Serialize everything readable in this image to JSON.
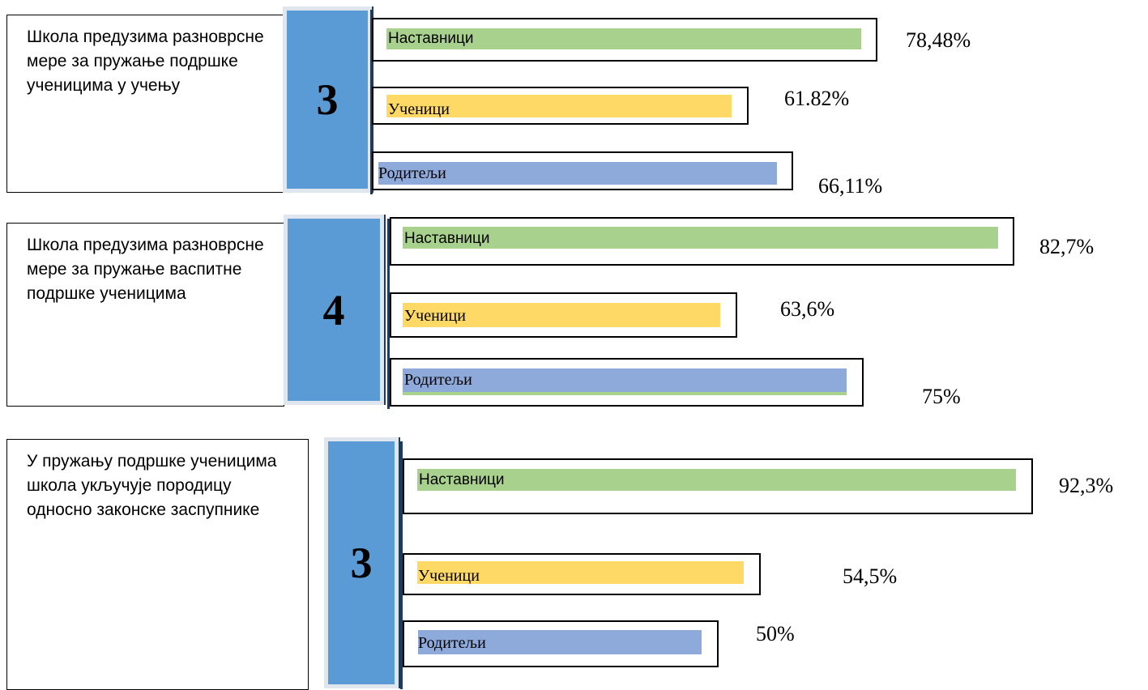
{
  "colors": {
    "nastavnici": "#a9d18e",
    "ucenici": "#ffd966",
    "roditelji": "#8eaadb",
    "score_box": "#5b9bd5"
  },
  "chart_data": [
    {
      "type": "bar",
      "title": "Школа предузима разноврсне мере за пружање подршке ученицима у учењу",
      "score": "3",
      "categories": [
        "Наставници",
        "Ученици",
        "Родитељи"
      ],
      "values": [
        78.48,
        61.82,
        66.11
      ],
      "value_labels": [
        "78,48%",
        "61.82%",
        "66,11%"
      ]
    },
    {
      "type": "bar",
      "title": "Школа предузима разноврсне мере за пружање васпитне подршке ученицима",
      "score": "4",
      "categories": [
        "Наставници",
        "Ученици",
        "Родитељи"
      ],
      "values": [
        82.7,
        63.6,
        75
      ],
      "value_labels": [
        "82,7%",
        "63,6%",
        "75%"
      ]
    },
    {
      "type": "bar",
      "title": "У пружању подршке ученицима школа укључује породицу односно законске заспупнике",
      "score": "3",
      "categories": [
        "Наставници",
        "Ученици",
        "Родитељи"
      ],
      "values": [
        92.3,
        54.5,
        50
      ],
      "value_labels": [
        "92,3%",
        "54,5%",
        "50%"
      ]
    }
  ]
}
